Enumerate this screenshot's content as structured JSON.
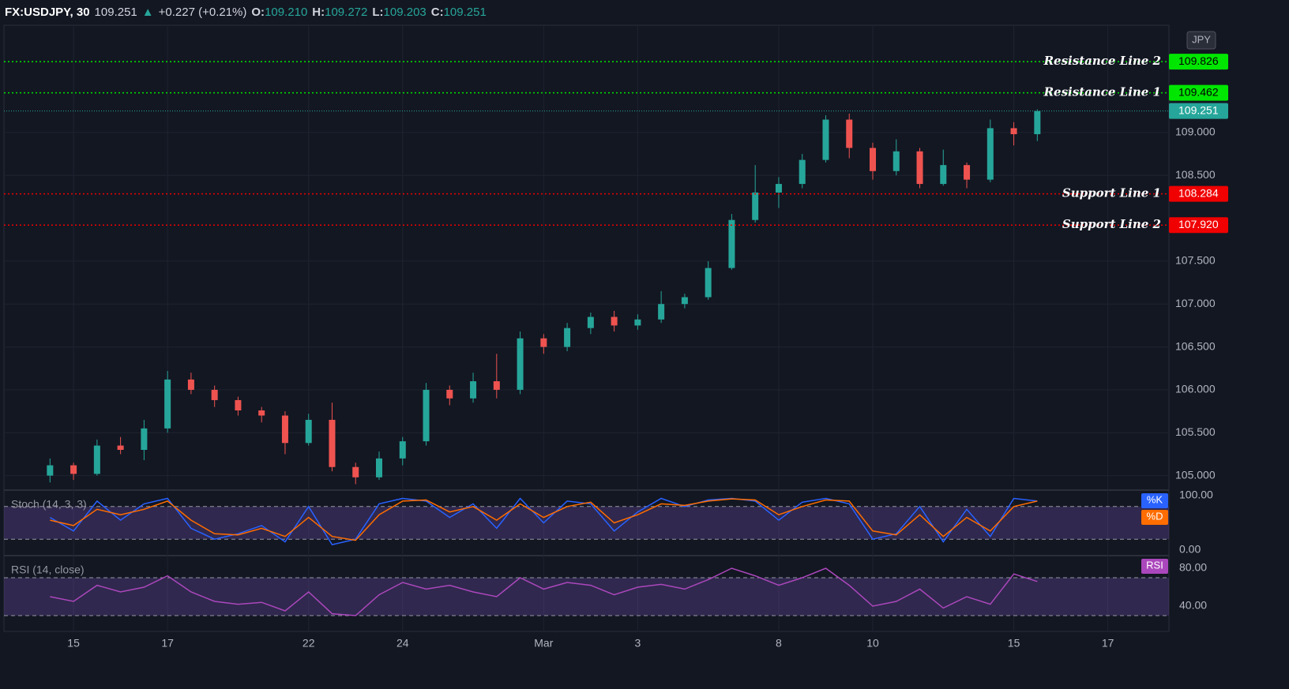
{
  "header": {
    "symbol": "FX:USDJPY, 30",
    "price": "109.251",
    "arrow": "▲",
    "change": "+0.227 (+0.21%)",
    "open_label": "O:",
    "open": "109.210",
    "high_label": "H:",
    "high": "109.272",
    "low_label": "L:",
    "low": "109.203",
    "close_label": "C:",
    "close": "109.251",
    "currency": "JPY"
  },
  "chart_data": [
    {
      "type": "candlestick",
      "up_color": "#26a69a",
      "down_color": "#ef5350",
      "x": [
        -0.5,
        0,
        0.5,
        1,
        1.5,
        2,
        2.5,
        3,
        3.5,
        4,
        4.5,
        5,
        5.5,
        6,
        6.5,
        7,
        7.5,
        8,
        8.5,
        9,
        9.5,
        10,
        10.5,
        11,
        11.5,
        12,
        12.5,
        13,
        13.5,
        14,
        14.5,
        15,
        15.5,
        16,
        16.5,
        17,
        17.5,
        18,
        18.5,
        19,
        19.5,
        20,
        20.5
      ],
      "open": [
        105.0,
        105.12,
        105.02,
        105.35,
        105.3,
        105.55,
        106.12,
        106.0,
        105.88,
        105.76,
        105.7,
        105.38,
        105.65,
        105.1,
        104.98,
        105.2,
        105.4,
        106.0,
        105.9,
        106.1,
        106.0,
        106.6,
        106.5,
        106.72,
        106.85,
        106.75,
        106.82,
        107.0,
        107.08,
        107.42,
        107.98,
        108.3,
        108.4,
        108.68,
        109.15,
        108.82,
        108.55,
        108.78,
        108.4,
        108.62,
        108.45,
        109.05,
        108.98
      ],
      "high": [
        105.2,
        105.15,
        105.42,
        105.45,
        105.65,
        106.22,
        106.2,
        106.05,
        105.92,
        105.8,
        105.75,
        105.72,
        105.85,
        105.15,
        105.28,
        105.45,
        106.08,
        106.05,
        106.2,
        106.42,
        106.68,
        106.65,
        106.78,
        106.9,
        106.92,
        106.88,
        107.15,
        107.12,
        107.5,
        108.05,
        108.62,
        108.48,
        108.75,
        109.2,
        109.22,
        108.88,
        108.92,
        108.82,
        108.8,
        108.65,
        109.15,
        109.12,
        109.27
      ],
      "low": [
        104.92,
        104.95,
        105.0,
        105.25,
        105.18,
        105.5,
        105.95,
        105.8,
        105.7,
        105.62,
        105.25,
        105.35,
        105.05,
        104.9,
        104.95,
        105.12,
        105.35,
        105.82,
        105.85,
        105.9,
        105.95,
        106.42,
        106.45,
        106.65,
        106.68,
        106.7,
        106.78,
        106.95,
        107.05,
        107.4,
        107.95,
        108.12,
        108.35,
        108.65,
        108.7,
        108.45,
        108.5,
        108.35,
        108.38,
        108.35,
        108.42,
        108.85,
        108.9
      ],
      "close": [
        105.12,
        105.02,
        105.35,
        105.3,
        105.55,
        106.12,
        106.0,
        105.88,
        105.76,
        105.7,
        105.38,
        105.65,
        105.1,
        104.98,
        105.2,
        105.4,
        106.0,
        105.9,
        106.1,
        106.0,
        106.6,
        106.5,
        106.72,
        106.85,
        106.75,
        106.82,
        107.0,
        107.08,
        107.42,
        107.98,
        108.3,
        108.4,
        108.68,
        109.15,
        108.82,
        108.55,
        108.78,
        108.4,
        108.62,
        108.45,
        109.05,
        108.98,
        109.25
      ],
      "xlim": [
        -1.48,
        23.3
      ],
      "xticks": [
        {
          "value": 0,
          "label": "15"
        },
        {
          "value": 2,
          "label": "17"
        },
        {
          "value": 5,
          "label": "22"
        },
        {
          "value": 7,
          "label": "24"
        },
        {
          "value": 10,
          "label": "Mar"
        },
        {
          "value": 12,
          "label": "3"
        },
        {
          "value": 15,
          "label": "8"
        },
        {
          "value": 17,
          "label": "10"
        },
        {
          "value": 20,
          "label": "15"
        },
        {
          "value": 22,
          "label": "17"
        }
      ],
      "ylim": [
        104.84,
        110.25
      ],
      "yticks": [
        {
          "value": 105,
          "label": "105.000"
        },
        {
          "value": 105.5,
          "label": "105.500"
        },
        {
          "value": 106,
          "label": "106.000"
        },
        {
          "value": 106.5,
          "label": "106.500"
        },
        {
          "value": 107,
          "label": "107.000"
        },
        {
          "value": 107.5,
          "label": "107.500"
        },
        {
          "value": 108.5,
          "label": "108.500"
        },
        {
          "value": 109,
          "label": "109.000"
        }
      ],
      "grid": true,
      "last": 109.251,
      "last_color": "#26a69a",
      "lines": [
        {
          "name": "Resistance Line 2",
          "value": 109.826,
          "color": "#00e600"
        },
        {
          "name": "Resistance Line 1",
          "value": 109.462,
          "color": "#00e600"
        },
        {
          "name": "Support Line 1",
          "value": 108.284,
          "color": "#f00000"
        },
        {
          "name": "Support Line 2",
          "value": {
            "value": 107.92,
            "label": "107.920"
          },
          "color": "#f00000"
        }
      ]
    },
    {
      "type": "line",
      "title": "Stoch (14, 3, 3)",
      "x": [
        -0.5,
        0,
        0.5,
        1,
        1.5,
        2,
        2.5,
        3,
        3.5,
        4,
        4.5,
        5,
        5.5,
        6,
        6.5,
        7,
        7.5,
        8,
        8.5,
        9,
        9.5,
        10,
        10.5,
        11,
        11.5,
        12,
        12.5,
        13,
        13.5,
        14,
        14.5,
        15,
        15.5,
        16,
        16.5,
        17,
        17.5,
        18,
        18.5,
        19,
        19.5,
        20,
        20.5
      ],
      "series": [
        {
          "name": "%K",
          "color": "#2962ff",
          "values": [
            60,
            35,
            90,
            55,
            85,
            95,
            40,
            20,
            30,
            45,
            15,
            80,
            10,
            20,
            85,
            95,
            90,
            60,
            85,
            40,
            95,
            50,
            90,
            85,
            35,
            70,
            95,
            80,
            92,
            95,
            90,
            55,
            88,
            95,
            85,
            20,
            30,
            80,
            15,
            75,
            25,
            95,
            90
          ]
        },
        {
          "name": "%D",
          "color": "#ff6d00",
          "values": [
            55,
            45,
            75,
            65,
            75,
            90,
            55,
            30,
            28,
            40,
            25,
            60,
            25,
            18,
            65,
            90,
            92,
            70,
            80,
            55,
            85,
            60,
            80,
            88,
            50,
            65,
            85,
            82,
            90,
            94,
            92,
            65,
            80,
            92,
            90,
            35,
            28,
            65,
            25,
            60,
            35,
            80,
            90
          ]
        }
      ],
      "xlim": [
        -1.48,
        23.3
      ],
      "ylim": [
        -8.7,
        108.7
      ],
      "yticks": [
        {
          "value": 100,
          "label": "100.00"
        },
        {
          "value": 0,
          "label": "0.00"
        }
      ],
      "bands": [
        20,
        80
      ],
      "band_color": "#7e57c2"
    },
    {
      "type": "line",
      "title": "RSI (14, close)",
      "x": [
        -0.5,
        0,
        0.5,
        1,
        1.5,
        2,
        2.5,
        3,
        3.5,
        4,
        4.5,
        5,
        5.5,
        6,
        6.5,
        7,
        7.5,
        8,
        8.5,
        9,
        9.5,
        10,
        10.5,
        11,
        11.5,
        12,
        12.5,
        13,
        13.5,
        14,
        14.5,
        15,
        15.5,
        16,
        16.5,
        17,
        17.5,
        18,
        18.5,
        19,
        19.5,
        20,
        20.5
      ],
      "series": [
        {
          "name": "RSI",
          "color": "#ab47bc",
          "values": [
            50,
            45,
            62,
            55,
            60,
            72,
            55,
            45,
            42,
            44,
            35,
            55,
            32,
            30,
            52,
            65,
            58,
            62,
            55,
            50,
            70,
            58,
            65,
            62,
            52,
            60,
            63,
            58,
            68,
            80,
            72,
            62,
            70,
            80,
            62,
            40,
            45,
            58,
            38,
            50,
            42,
            74,
            66
          ]
        }
      ],
      "xlim": [
        -1.48,
        23.3
      ],
      "ylim": [
        21.7,
        92.5
      ],
      "yticks": [
        {
          "value": 80,
          "label": "80.00"
        },
        {
          "value": 40,
          "label": "40.00"
        }
      ],
      "bands": [
        30,
        70
      ],
      "band_color": "#7e57c2"
    }
  ]
}
